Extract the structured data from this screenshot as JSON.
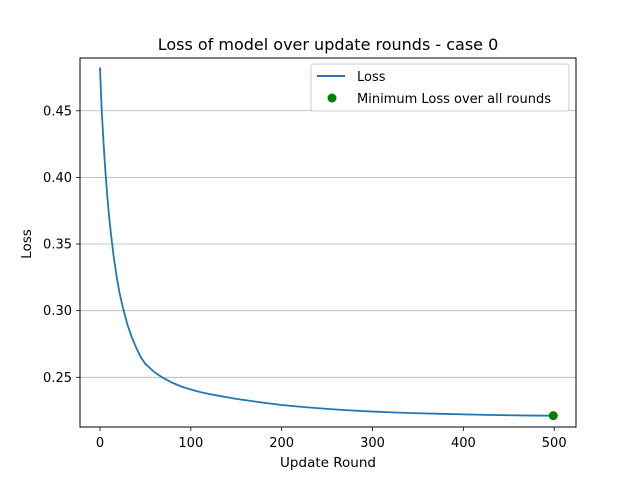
{
  "chart_data": {
    "type": "line",
    "title": "Loss of model over update rounds - case 0",
    "xlabel": "Update Round",
    "ylabel": "Loss",
    "xlim": [
      -22,
      524
    ],
    "ylim": [
      0.2127,
      0.4896
    ],
    "xticks": [
      0,
      100,
      200,
      300,
      400,
      500
    ],
    "xtick_labels": [
      "0",
      "100",
      "200",
      "300",
      "400",
      "500"
    ],
    "yticks": [
      0.25,
      0.3,
      0.35,
      0.4,
      0.45
    ],
    "ytick_labels": [
      "0.25",
      "0.30",
      "0.35",
      "0.40",
      "0.45"
    ],
    "grid": "y",
    "legend_position": "top-right",
    "series": [
      {
        "name": "Loss",
        "color": "#1f77b4",
        "x": [
          0,
          2,
          4,
          6,
          8,
          10,
          12,
          15,
          18,
          21,
          25,
          30,
          35,
          40,
          45,
          50,
          60,
          70,
          80,
          90,
          100,
          110,
          120,
          130,
          140,
          150,
          175,
          200,
          225,
          250,
          275,
          300,
          325,
          350,
          375,
          400,
          425,
          450,
          475,
          499
        ],
        "y": [
          0.482,
          0.449,
          0.425,
          0.404,
          0.386,
          0.371,
          0.358,
          0.341,
          0.327,
          0.315,
          0.303,
          0.29,
          0.28,
          0.272,
          0.265,
          0.26,
          0.2538,
          0.2493,
          0.2458,
          0.243,
          0.2408,
          0.239,
          0.2375,
          0.2362,
          0.235,
          0.2338,
          0.2314,
          0.2292,
          0.2276,
          0.2263,
          0.2252,
          0.2243,
          0.2236,
          0.223,
          0.2226,
          0.2222,
          0.2218,
          0.2215,
          0.2213,
          0.2212
        ]
      },
      {
        "name": "Minimum Loss over all rounds",
        "type": "scatter",
        "color": "#008000",
        "x": [
          499
        ],
        "y": [
          0.2212
        ]
      }
    ]
  }
}
